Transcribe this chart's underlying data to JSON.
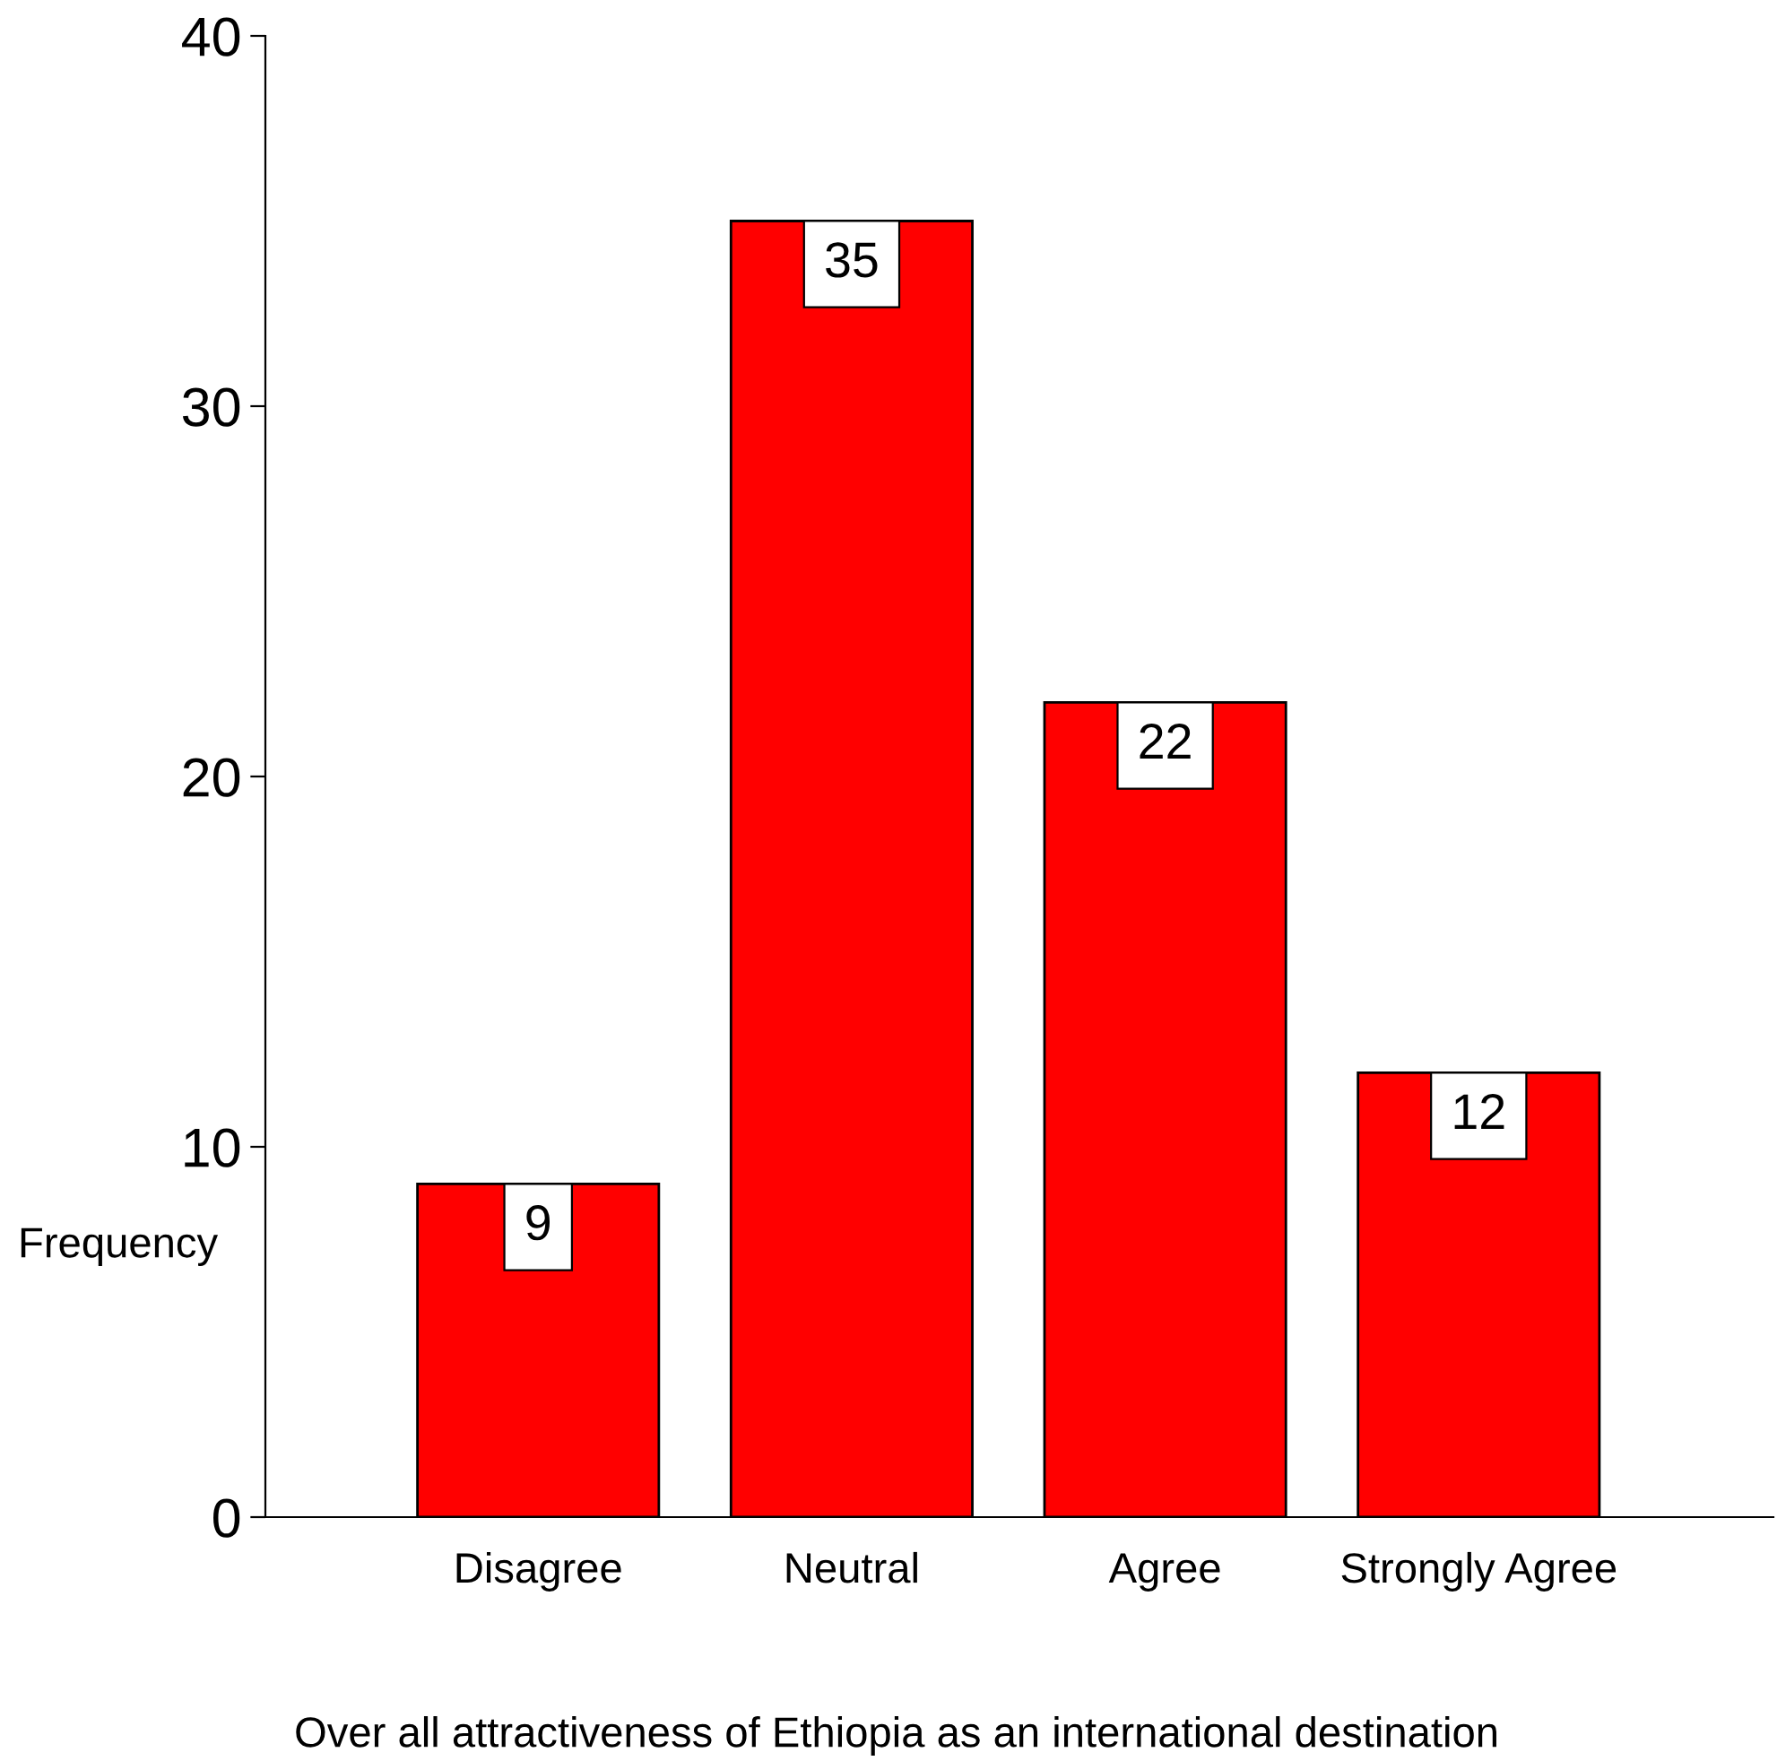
{
  "chart_data": {
    "type": "bar",
    "categories": [
      "Disagree",
      "Neutral",
      "Agree",
      "Strongly Agree"
    ],
    "values": [
      9,
      35,
      22,
      12
    ],
    "color": "#ff0000",
    "ylim": [
      0,
      40
    ],
    "yticks": [
      0,
      10,
      20,
      30,
      40
    ],
    "ylabel": "Frequency",
    "xlabel": "Over all attractiveness of Ethiopia as an international destination",
    "data_labels": true,
    "grid": false,
    "legend": false
  }
}
